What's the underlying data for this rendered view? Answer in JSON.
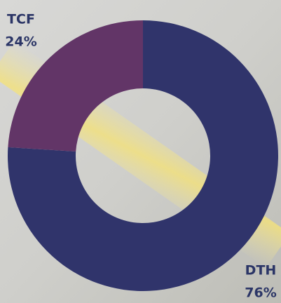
{
  "chart_data": {
    "type": "donut",
    "categories": [
      "DTH",
      "TCF"
    ],
    "values": [
      76,
      24
    ],
    "value_labels": [
      "76%",
      "24%"
    ],
    "colors": [
      "#30346b",
      "#623567"
    ]
  }
}
